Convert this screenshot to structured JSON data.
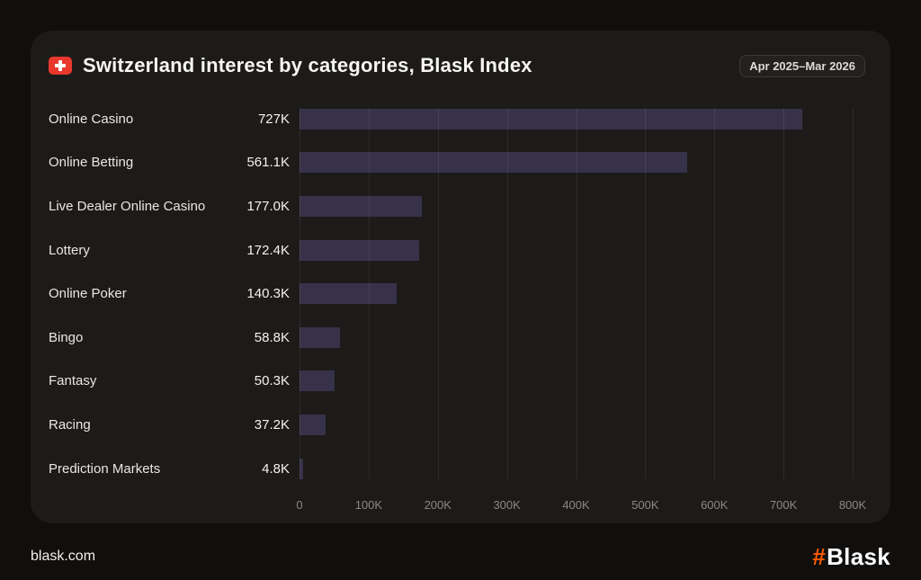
{
  "header": {
    "title": "Switzerland interest by categories, Blask Index",
    "flag_icon": "switzerland-flag",
    "flag_color": "#e8382e",
    "date_range": "Apr 2025–Mar 2026"
  },
  "chart_data": {
    "type": "bar",
    "orientation": "horizontal",
    "title": "Switzerland interest by categories, Blask Index",
    "categories": [
      "Online Casino",
      "Online Betting",
      "Live Dealer Online Casino",
      "Lottery",
      "Online Poker",
      "Bingo",
      "Fantasy",
      "Racing",
      "Prediction Markets"
    ],
    "values": [
      727000,
      561100,
      177000,
      172400,
      140300,
      58800,
      50300,
      37200,
      4800
    ],
    "value_labels": [
      "727K",
      "561.1K",
      "177.0K",
      "172.4K",
      "140.3K",
      "58.8K",
      "50.3K",
      "37.2K",
      "4.8K"
    ],
    "xlim": [
      0,
      800000
    ],
    "x_ticks": [
      "0",
      "100K",
      "200K",
      "300K",
      "400K",
      "500K",
      "600K",
      "700K",
      "800K"
    ],
    "xlabel": "",
    "ylabel": "",
    "grid": true,
    "legend": false,
    "bar_color": "#37324a",
    "gridline_color": "rgba(255,255,255,0.07)"
  },
  "footer": {
    "site": "blask.com",
    "logo_hash": "#",
    "logo_text": "Blask",
    "logo_accent": "#ff5a00"
  }
}
